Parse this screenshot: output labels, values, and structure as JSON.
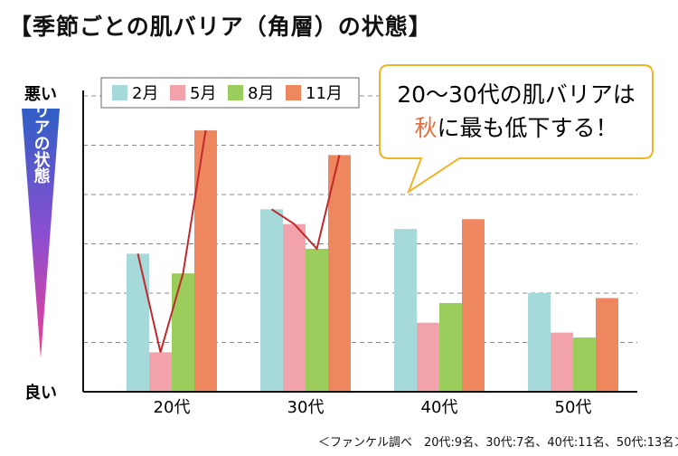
{
  "title": "【季節ごとの肌バリア（角層）の状態】",
  "y_axis": {
    "top_label": "悪い",
    "bottom_label": "良い",
    "caption": "肌バリアの状態"
  },
  "callout": {
    "line1": "20～30代の肌バリアは",
    "line2_highlight": "秋",
    "line2_rest": "に最も低下する！"
  },
  "footnote": "＜ファンケル調べ　20代:9名、30代:7名、40代:11名、50代:13名＞",
  "colors": {
    "2月": "#a6d9d9",
    "5月": "#f2a2aa",
    "8月": "#9acd5c",
    "11月": "#ee865e",
    "trend_line": "#c0282c",
    "highlight_text": "#e36d3f",
    "callout_border": "#f0b429"
  },
  "chart_data": {
    "type": "bar",
    "title": "【季節ごとの肌バリア（角層）の状態】",
    "categories": [
      "20代",
      "30代",
      "40代",
      "50代"
    ],
    "series": [
      {
        "name": "2月",
        "values": [
          2.8,
          3.7,
          3.3,
          2.0
        ]
      },
      {
        "name": "5月",
        "values": [
          0.8,
          3.4,
          1.4,
          1.2
        ]
      },
      {
        "name": "8月",
        "values": [
          2.4,
          2.9,
          1.8,
          1.1
        ]
      },
      {
        "name": "11月",
        "values": [
          5.3,
          4.8,
          3.5,
          1.9
        ]
      }
    ],
    "ylim": [
      0,
      6
    ],
    "grid": true,
    "legend": "top-left",
    "trend_lines": [
      {
        "category": "20代",
        "values": [
          2.8,
          0.8,
          2.4,
          5.3
        ]
      },
      {
        "category": "30代",
        "values": [
          3.7,
          3.4,
          2.9,
          4.8
        ]
      }
    ]
  }
}
